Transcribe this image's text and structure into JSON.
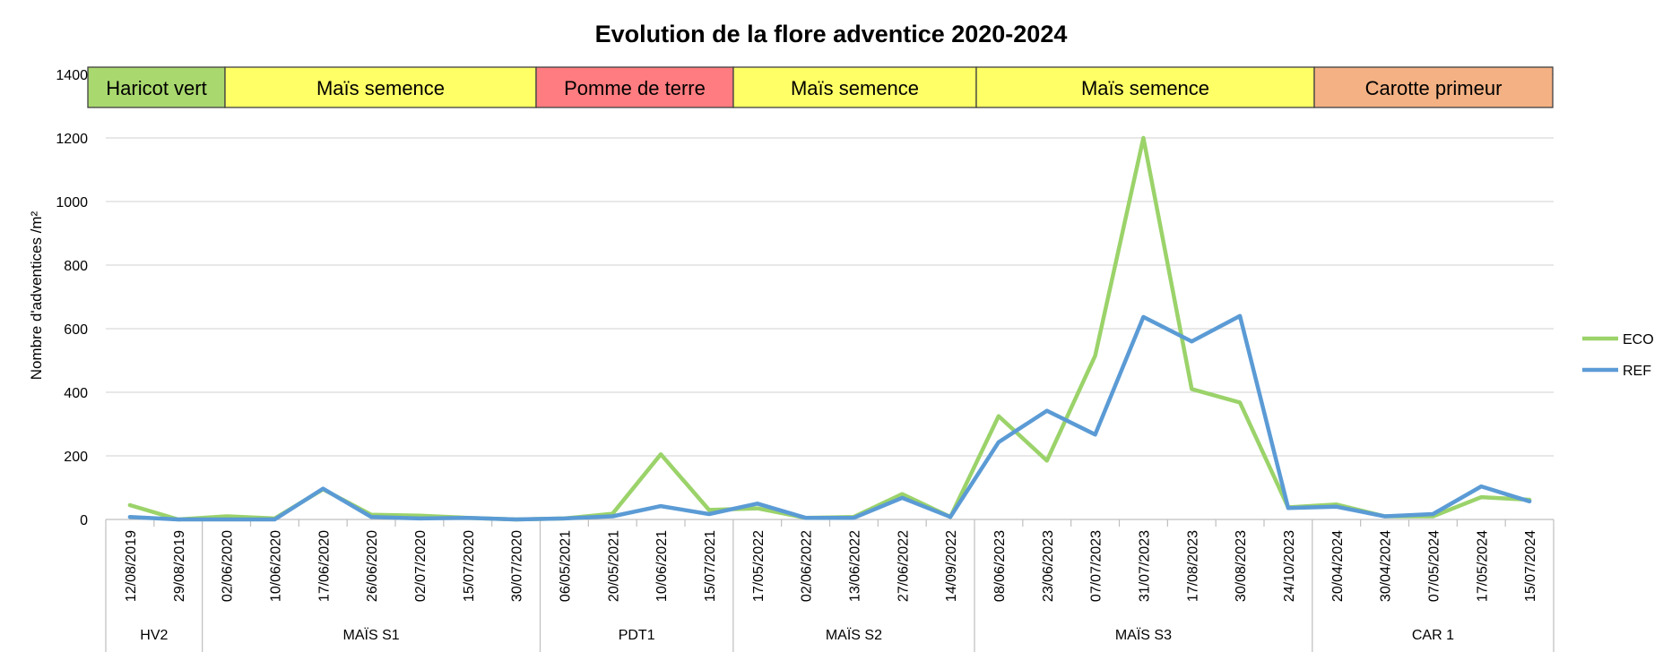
{
  "chart_data": {
    "type": "line",
    "title": "Evolution de la flore adventice 2020-2024",
    "xlabel": "",
    "ylabel": "Nombre d'adventices /m²",
    "ylim": [
      0,
      1400
    ],
    "yticks": [
      0,
      200,
      400,
      600,
      800,
      1000,
      1200,
      1400
    ],
    "grid": true,
    "legend_position": "right",
    "categories": [
      "12/08/2019",
      "29/08/2019",
      "02/06/2020",
      "10/06/2020",
      "17/06/2020",
      "26/06/2020",
      "02/07/2020",
      "15/07/2020",
      "30/07/2020",
      "06/05/2021",
      "20/05/2021",
      "10/06/2021",
      "15/07/2021",
      "17/05/2022",
      "02/06/2022",
      "13/06/2022",
      "27/06/2022",
      "14/09/2022",
      "08/06/2023",
      "23/06/2023",
      "07/07/2023",
      "31/07/2023",
      "17/08/2023",
      "30/08/2023",
      "24/10/2023",
      "20/04/2024",
      "30/04/2024",
      "07/05/2024",
      "17/05/2024",
      "15/07/2024"
    ],
    "groups": [
      {
        "label": "HV2",
        "start": 0,
        "end": 1
      },
      {
        "label": "MAÏS S1",
        "start": 2,
        "end": 8
      },
      {
        "label": "PDT1",
        "start": 9,
        "end": 12
      },
      {
        "label": "MAÏS S2",
        "start": 13,
        "end": 17
      },
      {
        "label": "MAÏS S3",
        "start": 18,
        "end": 24
      },
      {
        "label": "CAR 1",
        "start": 25,
        "end": 29
      }
    ],
    "crop_bands": [
      {
        "label": "Haricot vert",
        "start": 0,
        "end": 1,
        "color": "#a9d86e"
      },
      {
        "label": "Maïs semence",
        "start": 2,
        "end": 8,
        "color": "#ffff66"
      },
      {
        "label": "Pomme de terre",
        "start": 9,
        "end": 12,
        "color": "#ff7c80"
      },
      {
        "label": "Maïs semence",
        "start": 13,
        "end": 17,
        "color": "#ffff66"
      },
      {
        "label": "Maïs semence",
        "start": 18,
        "end": 24,
        "color": "#ffff66"
      },
      {
        "label": "Carotte primeur",
        "start": 25,
        "end": 29,
        "color": "#f4b183"
      }
    ],
    "series": [
      {
        "name": "ECO",
        "color": "#9bd36a",
        "values": [
          45,
          0,
          10,
          3,
          95,
          15,
          12,
          5,
          0,
          3,
          18,
          205,
          30,
          35,
          5,
          8,
          80,
          8,
          325,
          185,
          515,
          1200,
          410,
          368,
          38,
          47,
          10,
          10,
          70,
          62
        ]
      },
      {
        "name": "REF",
        "color": "#5b9bd5",
        "values": [
          8,
          0,
          0,
          0,
          97,
          8,
          3,
          5,
          0,
          3,
          10,
          42,
          17,
          50,
          5,
          5,
          68,
          8,
          243,
          342,
          267,
          637,
          560,
          640,
          36,
          40,
          10,
          17,
          104,
          57
        ]
      }
    ]
  }
}
